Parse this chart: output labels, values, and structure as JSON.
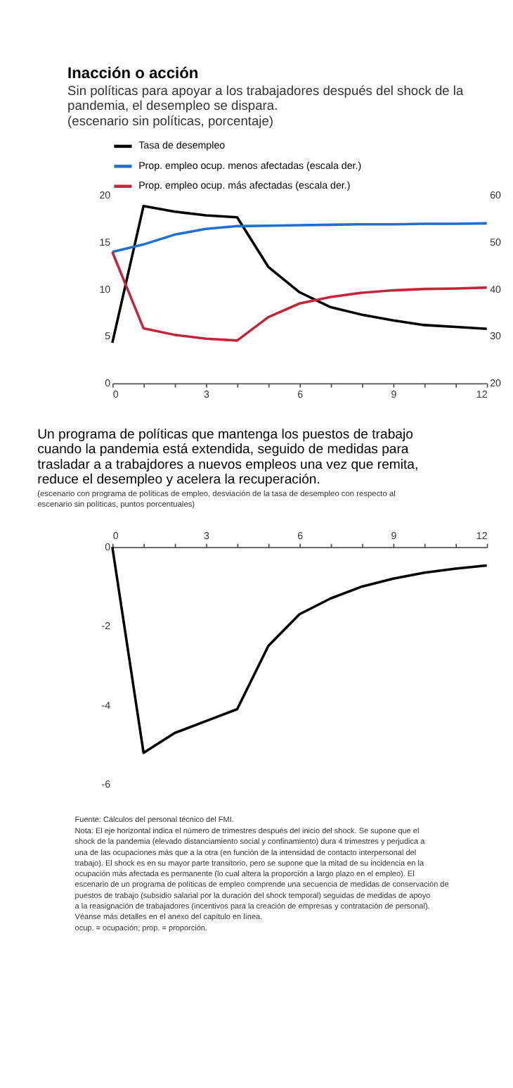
{
  "chart_data": [
    {
      "type": "line",
      "title": "Inacción o acción",
      "subtitle": "Sin políticas para apoyar a los trabajadores después del shock de la pandemia, el desempleo se dispara.",
      "annotations": [
        "(escenario sin políticas, porcentaje)"
      ],
      "series": [
        {
          "name": "Tasa de desempleo",
          "color": "#000000",
          "x": [
            0,
            1,
            2,
            3,
            4,
            5,
            6,
            7,
            8,
            9,
            10,
            11,
            12
          ],
          "values": [
            4.3,
            18.9,
            18.3,
            17.9,
            17.7,
            12.4,
            9.7,
            8.1,
            7.3,
            6.7,
            6.2,
            6.0,
            5.8
          ]
        },
        {
          "name": "Prop. empleo ocup. menos afectadas (escala der.)",
          "color": "#1f6fd1",
          "axis": "y2",
          "x": [
            0,
            1,
            2,
            3,
            4,
            5,
            6,
            7,
            8,
            9,
            10,
            11,
            12
          ],
          "values": [
            48.0,
            49.6,
            51.7,
            52.9,
            53.5,
            53.6,
            53.7,
            53.8,
            53.9,
            53.9,
            54.0,
            54.0,
            54.1
          ]
        },
        {
          "name": "Prop. empleo ocup. más afectadas (escala der.)",
          "color": "#c0273d",
          "axis": "y2",
          "x": [
            0,
            1,
            2,
            3,
            4,
            5,
            6,
            7,
            8,
            9,
            10,
            11,
            12
          ],
          "values": [
            48.0,
            31.7,
            30.3,
            29.5,
            29.1,
            34.1,
            37.0,
            38.4,
            39.3,
            39.8,
            40.1,
            40.2,
            40.4
          ]
        }
      ],
      "xlim": [
        0,
        12
      ],
      "xticks": [
        0,
        {
          "value": 1,
          "label": null
        },
        {
          "value": 2,
          "label": null
        },
        3,
        {
          "value": 4,
          "label": null
        },
        {
          "value": 5,
          "label": null
        },
        6,
        {
          "value": 7,
          "label": null
        },
        {
          "value": 8,
          "label": null
        },
        9,
        {
          "value": 10,
          "label": null
        },
        {
          "value": 11,
          "label": null
        },
        12
      ],
      "ylim": [
        0,
        20
      ],
      "yticks": [
        0,
        5,
        10,
        15,
        20
      ],
      "y2lim": [
        20,
        60
      ],
      "y2ticks": [
        20,
        30,
        40,
        50,
        60
      ],
      "grid": false,
      "legend": "top",
      "marker": "none",
      "line_style": "solid"
    },
    {
      "type": "line",
      "title": "Un programa de políticas que mantenga los puestos de trabajo cuando la pandemia está extendida, seguido de medidas para trasladar a a trabajdores a nuevos empleos una vez que remita, reduce el desempleo y acelera la recuperación.",
      "subtitle": "(escenario con programa de políticas de empleo, desviación de la tasa de desempleo con respecto al escenario sin políticas, puntos porcentuales)",
      "annotations": [
        "Fuente: Cálculos del personal técnico del FMI.",
        "Nota: El eje horizontal indica el número de trimestres después del inicio del shock. Se supone que el shock de la pandemia (elevado distanciamiento social y confinamiento) dura 4 trimestres y perjudica a una de las ocupaciones más que a la otra (en función de la intensidad de contacto interpersonal del trabajo). El shock es en su mayor parte transitorio, pero se supone que la mitad de su incidencia en la ocupación más afectada es permanente (lo cual altera la proporción a largo plazo en el empleo). El escenario de un programa de políticas de empleo comprende una secuencia de medidas de conservación de puestos de trabajo (subsidio salarial por la duración del shock temporal) seguidas de medidas de apoyo a la reasignación de trabajadores (incentivos para la creación de empresas y contratación de personal). Véanse más detalles en el anexo del capítulo en línea.",
        "ocup. = ocupación; prop. = proporción."
      ],
      "series": [
        {
          "color": "#000000",
          "x": [
            0,
            1,
            2,
            3,
            4,
            5,
            6,
            7,
            8,
            9,
            10,
            11,
            12
          ],
          "values": [
            0,
            -5.2,
            -4.7,
            -4.4,
            -4.1,
            -2.5,
            -1.7,
            -1.3,
            -1.0,
            -0.8,
            -0.65,
            -0.55,
            -0.47
          ]
        }
      ],
      "xlim": [
        0,
        12
      ],
      "xticks": [
        0,
        {
          "value": 1,
          "label": null
        },
        {
          "value": 2,
          "label": null
        },
        3,
        {
          "value": 4,
          "label": null
        },
        {
          "value": 5,
          "label": null
        },
        6,
        {
          "value": 7,
          "label": null
        },
        {
          "value": 8,
          "label": null
        },
        9,
        {
          "value": 10,
          "label": null
        },
        {
          "value": 11,
          "label": null
        },
        12
      ],
      "ylim": [
        -6,
        0
      ],
      "yticks": [
        0,
        -2,
        -4,
        -6
      ],
      "grid": false,
      "legend": false,
      "marker": "none",
      "line_style": "solid"
    }
  ]
}
